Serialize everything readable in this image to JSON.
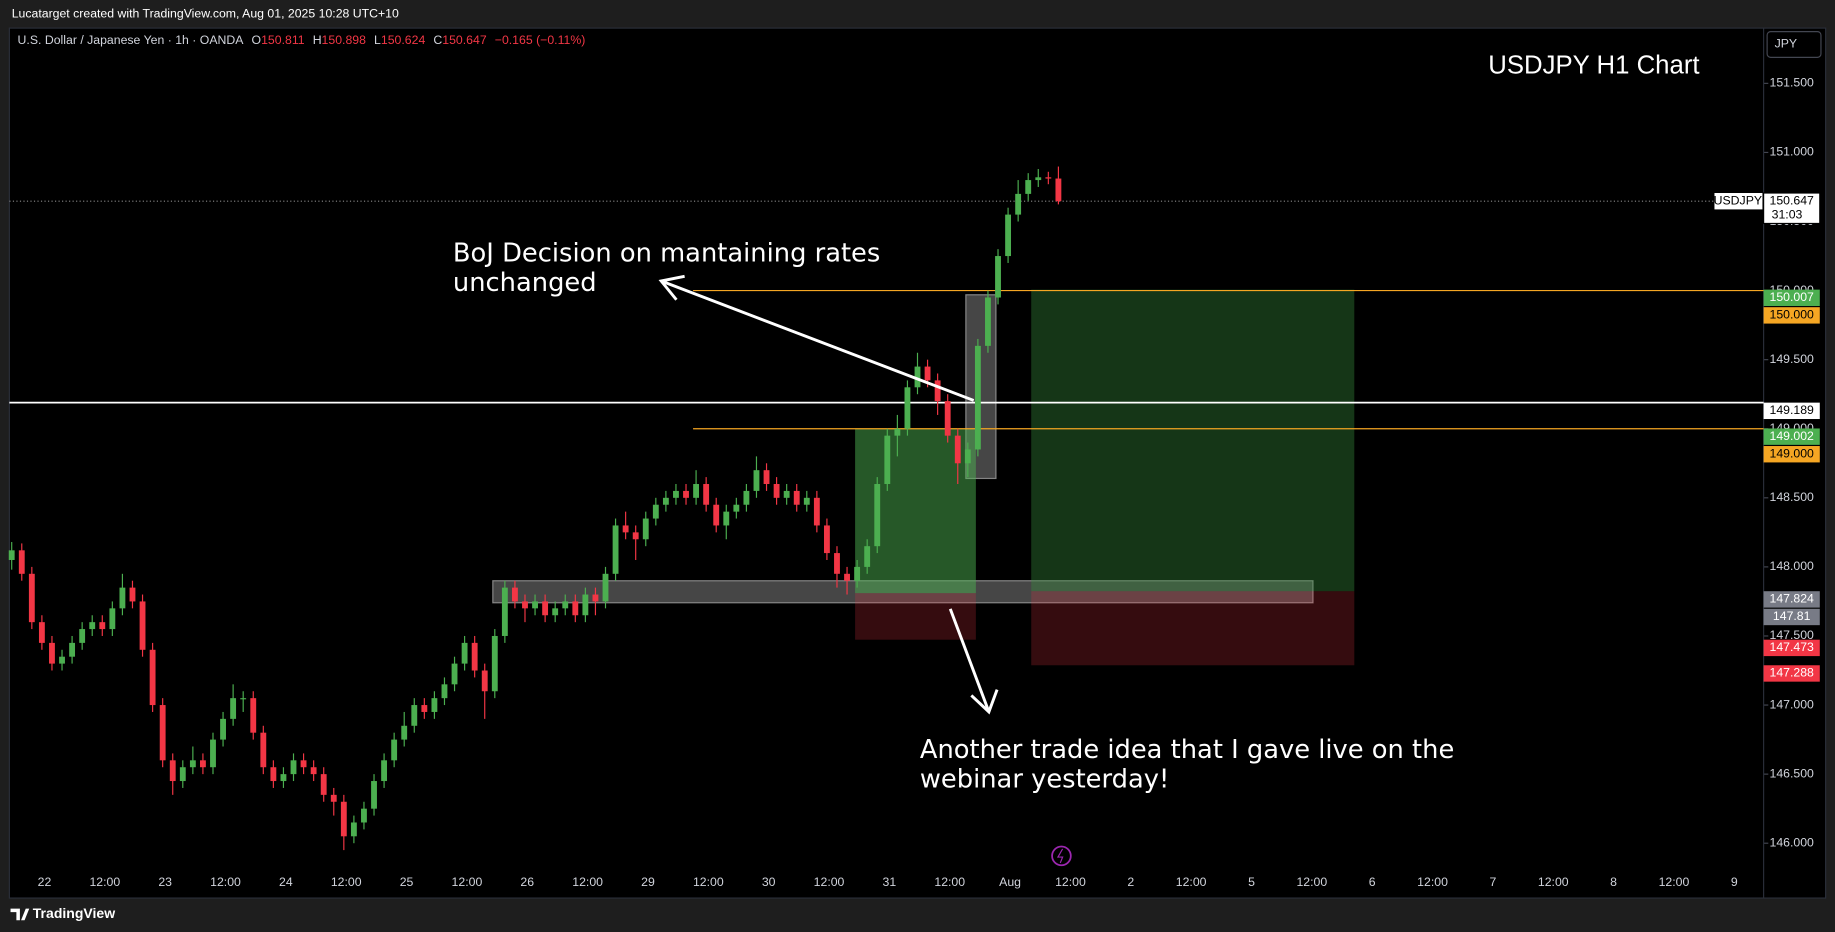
{
  "header": {
    "text": "Lucatarget created with TradingView.com, Aug 01, 2025 10:28 UTC+10"
  },
  "footer": {
    "brand": "TradingView"
  },
  "chart_data": {
    "type": "candlestick",
    "title": "USDJPY H1 Chart",
    "symbol": "U.S. Dollar / Japanese Yen · 1h · OANDA",
    "ohlc_prefixes": [
      "O",
      "H",
      "L",
      "C"
    ],
    "change": "−0.165 (−0.11%)",
    "currency_button": "JPY",
    "up_color": "#4caf50",
    "down_color": "#f23645",
    "ylim": [
      145.62,
      151.9
    ],
    "yticks": [
      {
        "value": 146,
        "label": "146.000"
      },
      {
        "value": 146.5,
        "label": "146.500"
      },
      {
        "value": 147,
        "label": "147.000"
      },
      {
        "value": 147.5,
        "label": "147.500"
      },
      {
        "value": 148,
        "label": "148.000"
      },
      {
        "value": 148.5,
        "label": "148.500"
      },
      {
        "value": 149,
        "label": "149.000"
      },
      {
        "value": 149.5,
        "label": "149.500"
      },
      {
        "value": 150,
        "label": "150.000"
      },
      {
        "value": 150.5,
        "label": "150.500"
      },
      {
        "value": 151,
        "label": "151.000"
      },
      {
        "value": 151.5,
        "label": "151.500"
      }
    ],
    "x_labels": [
      "22",
      "12:00",
      "23",
      "12:00",
      "24",
      "12:00",
      "25",
      "12:00",
      "26",
      "12:00",
      "29",
      "12:00",
      "30",
      "12:00",
      "31",
      "12:00",
      "Aug",
      "12:00",
      "2",
      "12:00",
      "5",
      "12:00",
      "6",
      "12:00",
      "7",
      "12:00",
      "8",
      "12:00",
      "9"
    ],
    "last_price": {
      "symbol": "USDJPY",
      "countdown": "31:03"
    },
    "levels": [
      {
        "value": 149.189,
        "color": "#ffffff",
        "start": 0
      },
      {
        "value": 150,
        "label": "150.000",
        "color": "#f5a623",
        "start": 67.7
      },
      {
        "value": 149,
        "label": "149.000",
        "color": "#f5a623",
        "start": 67.7
      }
    ],
    "positions": [
      {
        "start": 83.8,
        "end": 95.8,
        "target": 149.002,
        "entry": 147.81,
        "stop": 147.473
      },
      {
        "start": 101.3,
        "end": 133.4,
        "target": 150.007,
        "entry": 147.824,
        "stop": 147.288
      }
    ],
    "zones": [
      {
        "start": 47.8,
        "end": 129.3,
        "top": 147.9,
        "bottom": 147.74
      },
      {
        "start": 94.8,
        "end": 97.8,
        "top": 149.97,
        "bottom": 148.64
      }
    ],
    "annotations": [
      {
        "lines": [
          "BoJ Decision on mantaining rates",
          "unchanged"
        ]
      },
      {
        "lines": [
          "Another trade idea that I gave live on the",
          "webinar yesterday!"
        ]
      }
    ],
    "ohlc": [
      [
        148.05,
        148.18,
        147.98,
        148.12
      ],
      [
        148.12,
        148.17,
        147.9,
        147.95
      ],
      [
        147.95,
        148.0,
        147.55,
        147.6
      ],
      [
        147.6,
        147.65,
        147.4,
        147.45
      ],
      [
        147.45,
        147.5,
        147.25,
        147.3
      ],
      [
        147.3,
        147.4,
        147.25,
        147.35
      ],
      [
        147.35,
        147.5,
        147.3,
        147.45
      ],
      [
        147.45,
        147.6,
        147.4,
        147.55
      ],
      [
        147.55,
        147.65,
        147.5,
        147.6
      ],
      [
        147.6,
        147.65,
        147.5,
        147.55
      ],
      [
        147.55,
        147.75,
        147.5,
        147.7
      ],
      [
        147.7,
        147.95,
        147.65,
        147.85
      ],
      [
        147.85,
        147.9,
        147.7,
        147.75
      ],
      [
        147.75,
        147.8,
        147.35,
        147.4
      ],
      [
        147.4,
        147.45,
        146.95,
        147.0
      ],
      [
        147.0,
        147.05,
        146.55,
        146.6
      ],
      [
        146.6,
        146.65,
        146.35,
        146.45
      ],
      [
        146.45,
        146.6,
        146.4,
        146.55
      ],
      [
        146.55,
        146.7,
        146.5,
        146.6
      ],
      [
        146.6,
        146.65,
        146.5,
        146.55
      ],
      [
        146.55,
        146.8,
        146.5,
        146.75
      ],
      [
        146.75,
        146.95,
        146.7,
        146.9
      ],
      [
        146.9,
        147.15,
        146.85,
        147.05
      ],
      [
        147.05,
        147.1,
        146.95,
        147.05
      ],
      [
        147.05,
        147.1,
        146.75,
        146.8
      ],
      [
        146.8,
        146.85,
        146.5,
        146.55
      ],
      [
        146.55,
        146.6,
        146.4,
        146.45
      ],
      [
        146.45,
        146.55,
        146.4,
        146.5
      ],
      [
        146.5,
        146.65,
        146.45,
        146.6
      ],
      [
        146.6,
        146.65,
        146.5,
        146.55
      ],
      [
        146.55,
        146.6,
        146.45,
        146.5
      ],
      [
        146.5,
        146.55,
        146.3,
        146.35
      ],
      [
        146.35,
        146.4,
        146.2,
        146.3
      ],
      [
        146.3,
        146.35,
        145.95,
        146.05
      ],
      [
        146.05,
        146.2,
        146.0,
        146.15
      ],
      [
        146.15,
        146.3,
        146.1,
        146.25
      ],
      [
        146.25,
        146.5,
        146.2,
        146.45
      ],
      [
        146.45,
        146.65,
        146.4,
        146.6
      ],
      [
        146.6,
        146.8,
        146.55,
        146.75
      ],
      [
        146.75,
        146.95,
        146.7,
        146.85
      ],
      [
        146.85,
        147.05,
        146.8,
        147.0
      ],
      [
        147.0,
        147.05,
        146.9,
        146.95
      ],
      [
        146.95,
        147.1,
        146.9,
        147.05
      ],
      [
        147.05,
        147.2,
        147.0,
        147.15
      ],
      [
        147.15,
        147.35,
        147.1,
        147.3
      ],
      [
        147.3,
        147.5,
        147.25,
        147.45
      ],
      [
        147.45,
        147.5,
        147.2,
        147.25
      ],
      [
        147.25,
        147.3,
        146.9,
        147.1
      ],
      [
        147.1,
        147.55,
        147.05,
        147.5
      ],
      [
        147.5,
        147.9,
        147.45,
        147.85
      ],
      [
        147.85,
        147.9,
        147.7,
        147.75
      ],
      [
        147.75,
        147.8,
        147.6,
        147.7
      ],
      [
        147.7,
        147.8,
        147.65,
        147.75
      ],
      [
        147.75,
        147.8,
        147.6,
        147.65
      ],
      [
        147.65,
        147.75,
        147.6,
        147.7
      ],
      [
        147.7,
        147.8,
        147.65,
        147.75
      ],
      [
        147.75,
        147.8,
        147.6,
        147.65
      ],
      [
        147.65,
        147.85,
        147.6,
        147.8
      ],
      [
        147.8,
        147.85,
        147.65,
        147.75
      ],
      [
        147.75,
        148.0,
        147.7,
        147.95
      ],
      [
        147.95,
        148.35,
        147.9,
        148.3
      ],
      [
        148.3,
        148.4,
        148.2,
        148.25
      ],
      [
        148.25,
        148.3,
        148.05,
        148.2
      ],
      [
        148.2,
        148.4,
        148.15,
        148.35
      ],
      [
        148.35,
        148.5,
        148.3,
        148.45
      ],
      [
        148.45,
        148.55,
        148.4,
        148.5
      ],
      [
        148.5,
        148.6,
        148.45,
        148.55
      ],
      [
        148.55,
        148.6,
        148.45,
        148.5
      ],
      [
        148.5,
        148.7,
        148.45,
        148.6
      ],
      [
        148.6,
        148.65,
        148.4,
        148.45
      ],
      [
        148.45,
        148.5,
        148.25,
        148.3
      ],
      [
        148.3,
        148.45,
        148.2,
        148.4
      ],
      [
        148.4,
        148.5,
        148.35,
        148.45
      ],
      [
        148.45,
        148.6,
        148.4,
        148.55
      ],
      [
        148.55,
        148.8,
        148.5,
        148.7
      ],
      [
        148.7,
        148.75,
        148.55,
        148.6
      ],
      [
        148.6,
        148.65,
        148.45,
        148.5
      ],
      [
        148.5,
        148.6,
        148.45,
        148.55
      ],
      [
        148.55,
        148.6,
        148.4,
        148.45
      ],
      [
        148.45,
        148.55,
        148.4,
        148.5
      ],
      [
        148.5,
        148.55,
        148.25,
        148.3
      ],
      [
        148.3,
        148.35,
        148.05,
        148.1
      ],
      [
        148.1,
        148.15,
        147.85,
        147.95
      ],
      [
        147.95,
        148.0,
        147.8,
        147.9
      ],
      [
        147.9,
        148.05,
        147.85,
        148.0
      ],
      [
        148.0,
        148.2,
        147.95,
        148.15
      ],
      [
        148.15,
        148.65,
        148.1,
        148.6
      ],
      [
        148.6,
        149.0,
        148.55,
        148.95
      ],
      [
        148.95,
        149.1,
        148.8,
        149.0
      ],
      [
        149.0,
        149.35,
        148.95,
        149.3
      ],
      [
        149.3,
        149.55,
        149.25,
        149.45
      ],
      [
        149.45,
        149.5,
        149.3,
        149.35
      ],
      [
        149.35,
        149.4,
        149.1,
        149.2
      ],
      [
        149.2,
        149.25,
        148.9,
        148.95
      ],
      [
        148.95,
        149.0,
        148.6,
        148.75
      ],
      [
        148.75,
        148.9,
        148.65,
        148.85
      ],
      [
        148.85,
        149.65,
        148.8,
        149.6
      ],
      [
        149.6,
        150.0,
        149.55,
        149.95
      ],
      [
        149.95,
        150.3,
        149.9,
        150.25
      ],
      [
        150.25,
        150.6,
        150.2,
        150.55
      ],
      [
        150.55,
        150.8,
        150.5,
        150.7
      ],
      [
        150.7,
        150.85,
        150.65,
        150.8
      ],
      [
        150.8,
        150.88,
        150.75,
        150.82
      ],
      [
        150.82,
        150.86,
        150.77,
        150.811
      ],
      [
        150.811,
        150.898,
        150.624,
        150.647
      ]
    ]
  }
}
